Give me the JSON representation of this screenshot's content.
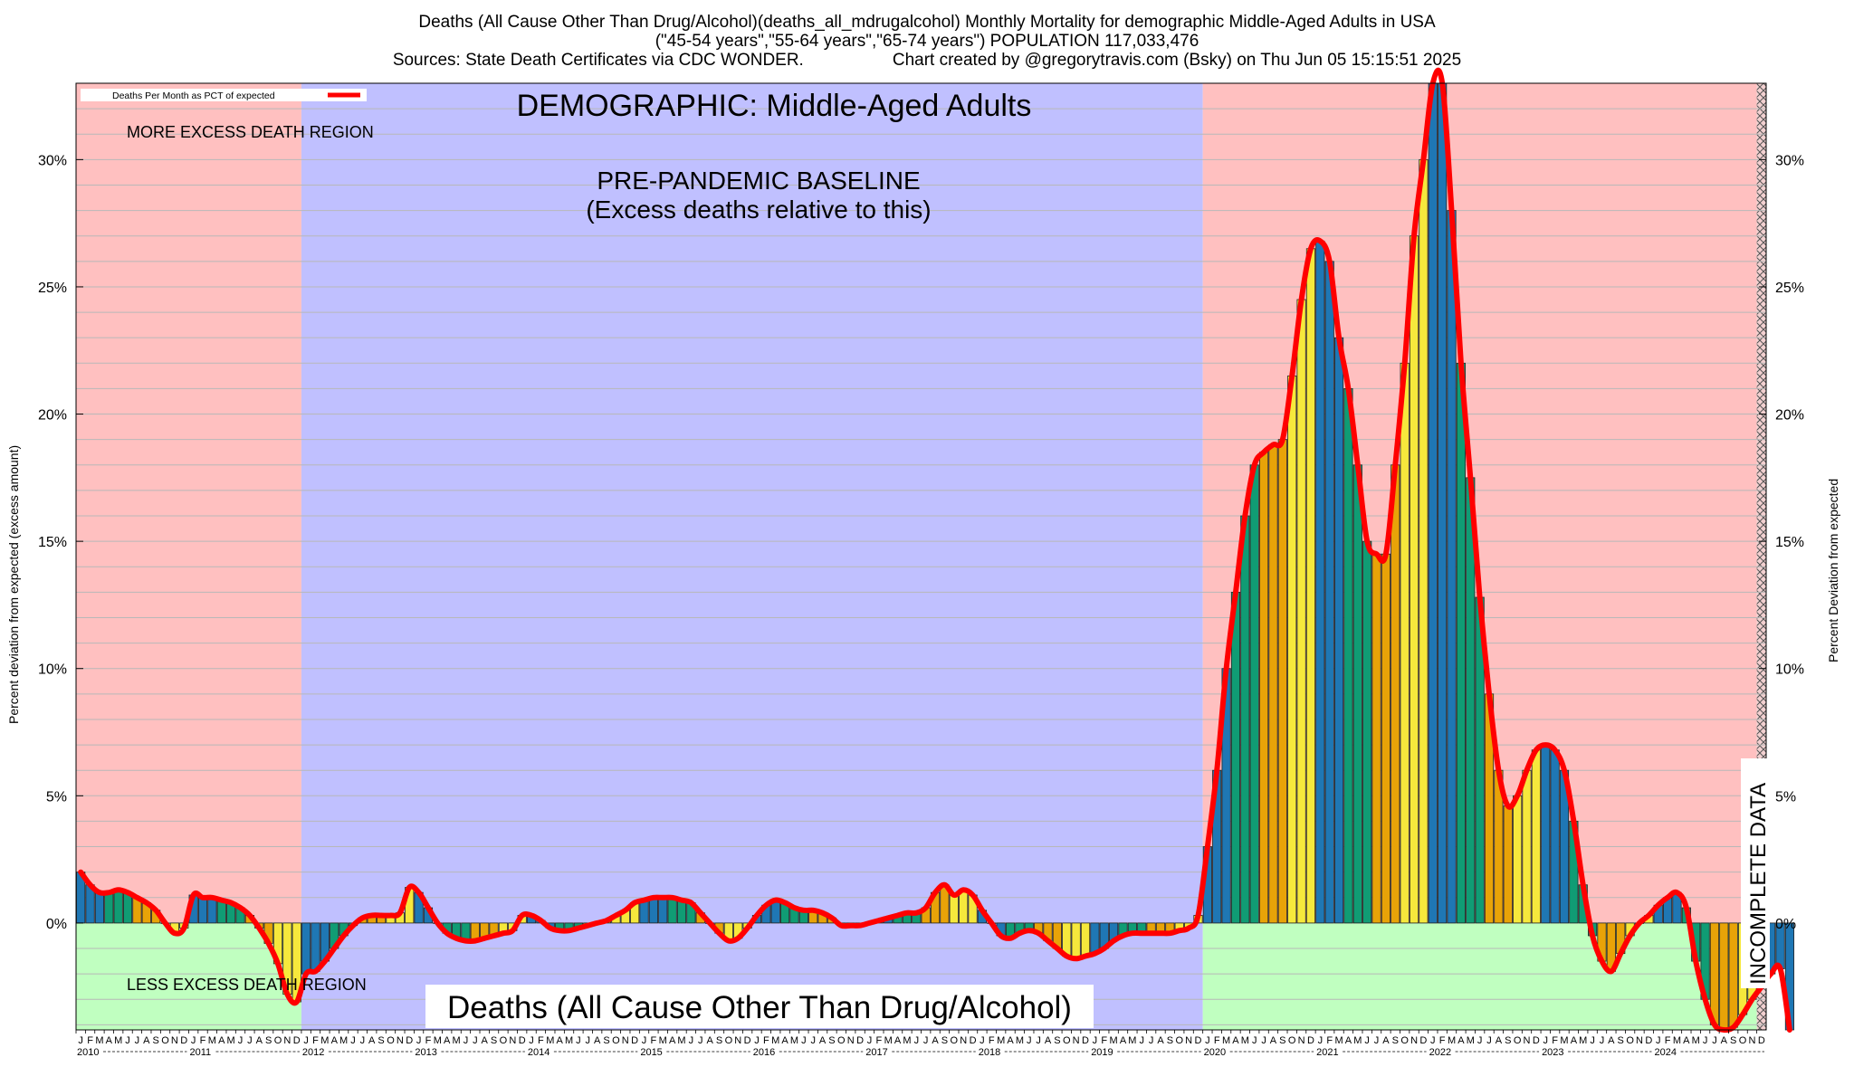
{
  "title_lines": [
    "Deaths (All Cause Other Than Drug/Alcohol)(deaths_all_mdrugalcohol) Monthly Mortality for demographic Middle-Aged Adults in USA",
    "(\"45-54 years\",\"55-64 years\",\"65-74 years\") POPULATION 117,033,476"
  ],
  "sources_text": "Sources: State Death Certificates via CDC WONDER.",
  "credit_text": "Chart created by @gregorytravis.com (Bsky) on Thu Jun 05 15:15:51 2025",
  "legend_label": "Deaths Per Month as PCT of expected",
  "annotations": {
    "demographic": "DEMOGRAPHIC: Middle-Aged Adults",
    "baseline_line1": "PRE-PANDEMIC BASELINE",
    "baseline_line2": "(Excess deaths relative to this)",
    "more_excess": "MORE EXCESS DEATH REGION",
    "less_excess": "LESS EXCESS DEATH REGION",
    "bottom_title": "Deaths (All Cause Other Than Drug/Alcohol)",
    "incomplete": "INCOMPLETE DATA"
  },
  "colors": {
    "more_region": "#ffc0c0",
    "less_region": "#c0ffc0",
    "baseline_region": "#c0c0ff",
    "line": "#ff0000",
    "bars": [
      "#1f77b4",
      "#109c74",
      "#e8a308",
      "#f6e83c"
    ]
  },
  "chart_data": {
    "type": "bar",
    "ylabel_left": "Percent deviation from expected (excess amount)",
    "ylabel_right": "Percent Deviation from expected",
    "ylim": [
      -4.2,
      33
    ],
    "yticks": [
      0,
      5,
      10,
      15,
      20,
      25,
      30
    ],
    "ytick_labels": [
      "0%",
      "5%",
      "10%",
      "15%",
      "20%",
      "25%",
      "30%"
    ],
    "month_letters": [
      "J",
      "F",
      "M",
      "A",
      "M",
      "J",
      "J",
      "A",
      "S",
      "O",
      "N",
      "D"
    ],
    "years": [
      "2010",
      "2011",
      "2012",
      "2013",
      "2014",
      "2015",
      "2016",
      "2017",
      "2018",
      "2019",
      "2020",
      "2021",
      "2022",
      "2023",
      "2024"
    ],
    "start": "2010-01",
    "baseline_period": [
      "2012-01",
      "2019-12"
    ],
    "incomplete_period": [
      "2024-12",
      "2025-01"
    ],
    "grid": true,
    "legend_position": "top-left",
    "values": [
      2.0,
      1.5,
      1.2,
      1.2,
      1.3,
      1.2,
      1.0,
      0.8,
      0.5,
      0.0,
      -0.4,
      -0.2,
      1.1,
      1.0,
      1.0,
      0.9,
      0.8,
      0.6,
      0.3,
      -0.2,
      -0.8,
      -1.6,
      -2.8,
      -3.1,
      -2.0,
      -1.9,
      -1.5,
      -1.0,
      -0.5,
      -0.1,
      0.2,
      0.3,
      0.3,
      0.3,
      0.4,
      1.4,
      1.2,
      0.6,
      0.0,
      -0.4,
      -0.6,
      -0.7,
      -0.7,
      -0.6,
      -0.5,
      -0.4,
      -0.3,
      0.3,
      0.3,
      0.1,
      -0.2,
      -0.3,
      -0.3,
      -0.2,
      -0.1,
      0.0,
      0.1,
      0.3,
      0.5,
      0.8,
      0.9,
      1.0,
      1.0,
      1.0,
      0.9,
      0.8,
      0.4,
      0.0,
      -0.4,
      -0.7,
      -0.6,
      -0.2,
      0.3,
      0.7,
      0.9,
      0.8,
      0.6,
      0.5,
      0.5,
      0.4,
      0.2,
      -0.1,
      -0.1,
      -0.1,
      0.0,
      0.1,
      0.2,
      0.3,
      0.4,
      0.4,
      0.6,
      1.2,
      1.5,
      1.1,
      1.3,
      1.1,
      0.5,
      0.0,
      -0.5,
      -0.6,
      -0.4,
      -0.3,
      -0.4,
      -0.7,
      -1.0,
      -1.3,
      -1.4,
      -1.3,
      -1.2,
      -1.0,
      -0.7,
      -0.5,
      -0.4,
      -0.4,
      -0.4,
      -0.4,
      -0.4,
      -0.3,
      -0.2,
      0.3,
      3.0,
      6.0,
      10.0,
      13.0,
      16.0,
      18.0,
      18.5,
      18.8,
      19.0,
      21.5,
      24.5,
      26.5,
      26.8,
      26.0,
      23.0,
      21.0,
      18.0,
      15.0,
      14.5,
      14.5,
      18.0,
      22.0,
      27.0,
      30.0,
      33.0,
      33.0,
      28.0,
      22.0,
      17.5,
      12.8,
      9.0,
      6.0,
      4.6,
      5.0,
      6.0,
      6.8,
      7.0,
      6.8,
      6.0,
      4.0,
      1.5,
      -0.5,
      -1.5,
      -1.9,
      -1.2,
      -0.5,
      0.0,
      0.3,
      0.7,
      1.0,
      1.2,
      0.6,
      -1.5,
      -3.0,
      -4.0,
      -4.2,
      -4.1,
      -3.6,
      -3.0,
      -2.5,
      -2.0,
      -1.8,
      -4.2
    ]
  }
}
